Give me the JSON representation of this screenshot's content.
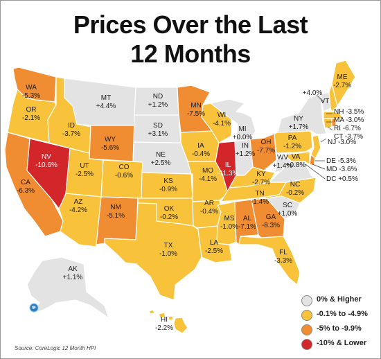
{
  "title_line1": "Prices Over the Last",
  "title_line2": "12 Months",
  "source": "Source: CoreLogic 12 Month HPI",
  "colors": {
    "cat0": "#e3e3e3",
    "cat1": "#f8c33b",
    "cat2": "#f08c31",
    "cat3": "#d3262b",
    "border": "#ffffff"
  },
  "legend": [
    {
      "key": "cat0",
      "label": "0% & Higher"
    },
    {
      "key": "cat1",
      "label": "-0.1% to -4.9%"
    },
    {
      "key": "cat2",
      "label": "-5% to -9.9%"
    },
    {
      "key": "cat3",
      "label": "-10% & Lower"
    }
  ],
  "states": [
    {
      "abbr": "WA",
      "value": "-5.3%",
      "cat": "cat2"
    },
    {
      "abbr": "OR",
      "value": "-2.1%",
      "cat": "cat1"
    },
    {
      "abbr": "CA",
      "value": "-6.3%",
      "cat": "cat2"
    },
    {
      "abbr": "NV",
      "value": "-10.6%",
      "cat": "cat3"
    },
    {
      "abbr": "ID",
      "value": "-3.7%",
      "cat": "cat1"
    },
    {
      "abbr": "MT",
      "value": "+4.4%",
      "cat": "cat0"
    },
    {
      "abbr": "WY",
      "value": "-5.6%",
      "cat": "cat2"
    },
    {
      "abbr": "UT",
      "value": "-2.5%",
      "cat": "cat1"
    },
    {
      "abbr": "AZ",
      "value": "-4.2%",
      "cat": "cat1"
    },
    {
      "abbr": "CO",
      "value": "-0.6%",
      "cat": "cat1"
    },
    {
      "abbr": "NM",
      "value": "-5.1%",
      "cat": "cat2"
    },
    {
      "abbr": "ND",
      "value": "+1.2%",
      "cat": "cat0"
    },
    {
      "abbr": "SD",
      "value": "+3.1%",
      "cat": "cat0"
    },
    {
      "abbr": "NE",
      "value": "+2.5%",
      "cat": "cat0"
    },
    {
      "abbr": "KS",
      "value": "-0.9%",
      "cat": "cat1"
    },
    {
      "abbr": "OK",
      "value": "-0.2%",
      "cat": "cat1"
    },
    {
      "abbr": "TX",
      "value": "-1.0%",
      "cat": "cat1"
    },
    {
      "abbr": "MN",
      "value": "-7.5%",
      "cat": "cat2"
    },
    {
      "abbr": "IA",
      "value": "-0.4%",
      "cat": "cat1"
    },
    {
      "abbr": "MO",
      "value": "-4.1%",
      "cat": "cat1"
    },
    {
      "abbr": "AR",
      "value": "-0.4%",
      "cat": "cat1"
    },
    {
      "abbr": "LA",
      "value": "-2.5%",
      "cat": "cat1"
    },
    {
      "abbr": "WI",
      "value": "-4.1%",
      "cat": "cat1"
    },
    {
      "abbr": "IL",
      "value": "-11.3%",
      "cat": "cat3"
    },
    {
      "abbr": "MI",
      "value": "+0.0%",
      "cat": "cat0"
    },
    {
      "abbr": "IN",
      "value": "+1.2%",
      "cat": "cat0"
    },
    {
      "abbr": "OH",
      "value": "-7.7%",
      "cat": "cat2"
    },
    {
      "abbr": "KY",
      "value": "-2.7%",
      "cat": "cat1"
    },
    {
      "abbr": "TN",
      "value": "-1.4%",
      "cat": "cat1"
    },
    {
      "abbr": "MS",
      "value": "-1.0%",
      "cat": "cat1"
    },
    {
      "abbr": "AL",
      "value": "-7.1%",
      "cat": "cat2"
    },
    {
      "abbr": "GA",
      "value": "-8.3%",
      "cat": "cat2"
    },
    {
      "abbr": "FL",
      "value": "-3.3%",
      "cat": "cat1"
    },
    {
      "abbr": "SC",
      "value": "+1.0%",
      "cat": "cat0"
    },
    {
      "abbr": "NC",
      "value": "-0.2%",
      "cat": "cat1"
    },
    {
      "abbr": "VA",
      "value": "+0.8%",
      "cat": "cat0"
    },
    {
      "abbr": "WV",
      "value": "+1.4%",
      "cat": "cat0"
    },
    {
      "abbr": "PA",
      "value": "-1.2%",
      "cat": "cat1"
    },
    {
      "abbr": "NY",
      "value": "+1.7%",
      "cat": "cat0"
    },
    {
      "abbr": "VT",
      "value": "+4.0%",
      "cat": "cat0"
    },
    {
      "abbr": "ME",
      "value": "-2.7%",
      "cat": "cat1"
    },
    {
      "abbr": "NH",
      "value": "-3.5%",
      "cat": "cat1"
    },
    {
      "abbr": "MA",
      "value": "-3.0%",
      "cat": "cat1"
    },
    {
      "abbr": "RI",
      "value": "-6.7%",
      "cat": "cat2"
    },
    {
      "abbr": "CT",
      "value": "-3.7%",
      "cat": "cat1"
    },
    {
      "abbr": "NJ",
      "value": "-3.0%",
      "cat": "cat1"
    },
    {
      "abbr": "DE",
      "value": "-5.3%",
      "cat": "cat2"
    },
    {
      "abbr": "MD",
      "value": "-3.6%",
      "cat": "cat1"
    },
    {
      "abbr": "DC",
      "value": "+0.5%",
      "cat": "cat0"
    },
    {
      "abbr": "AK",
      "value": "+1.1%",
      "cat": "cat0"
    },
    {
      "abbr": "HI",
      "value": "-2.2%",
      "cat": "cat1"
    }
  ]
}
